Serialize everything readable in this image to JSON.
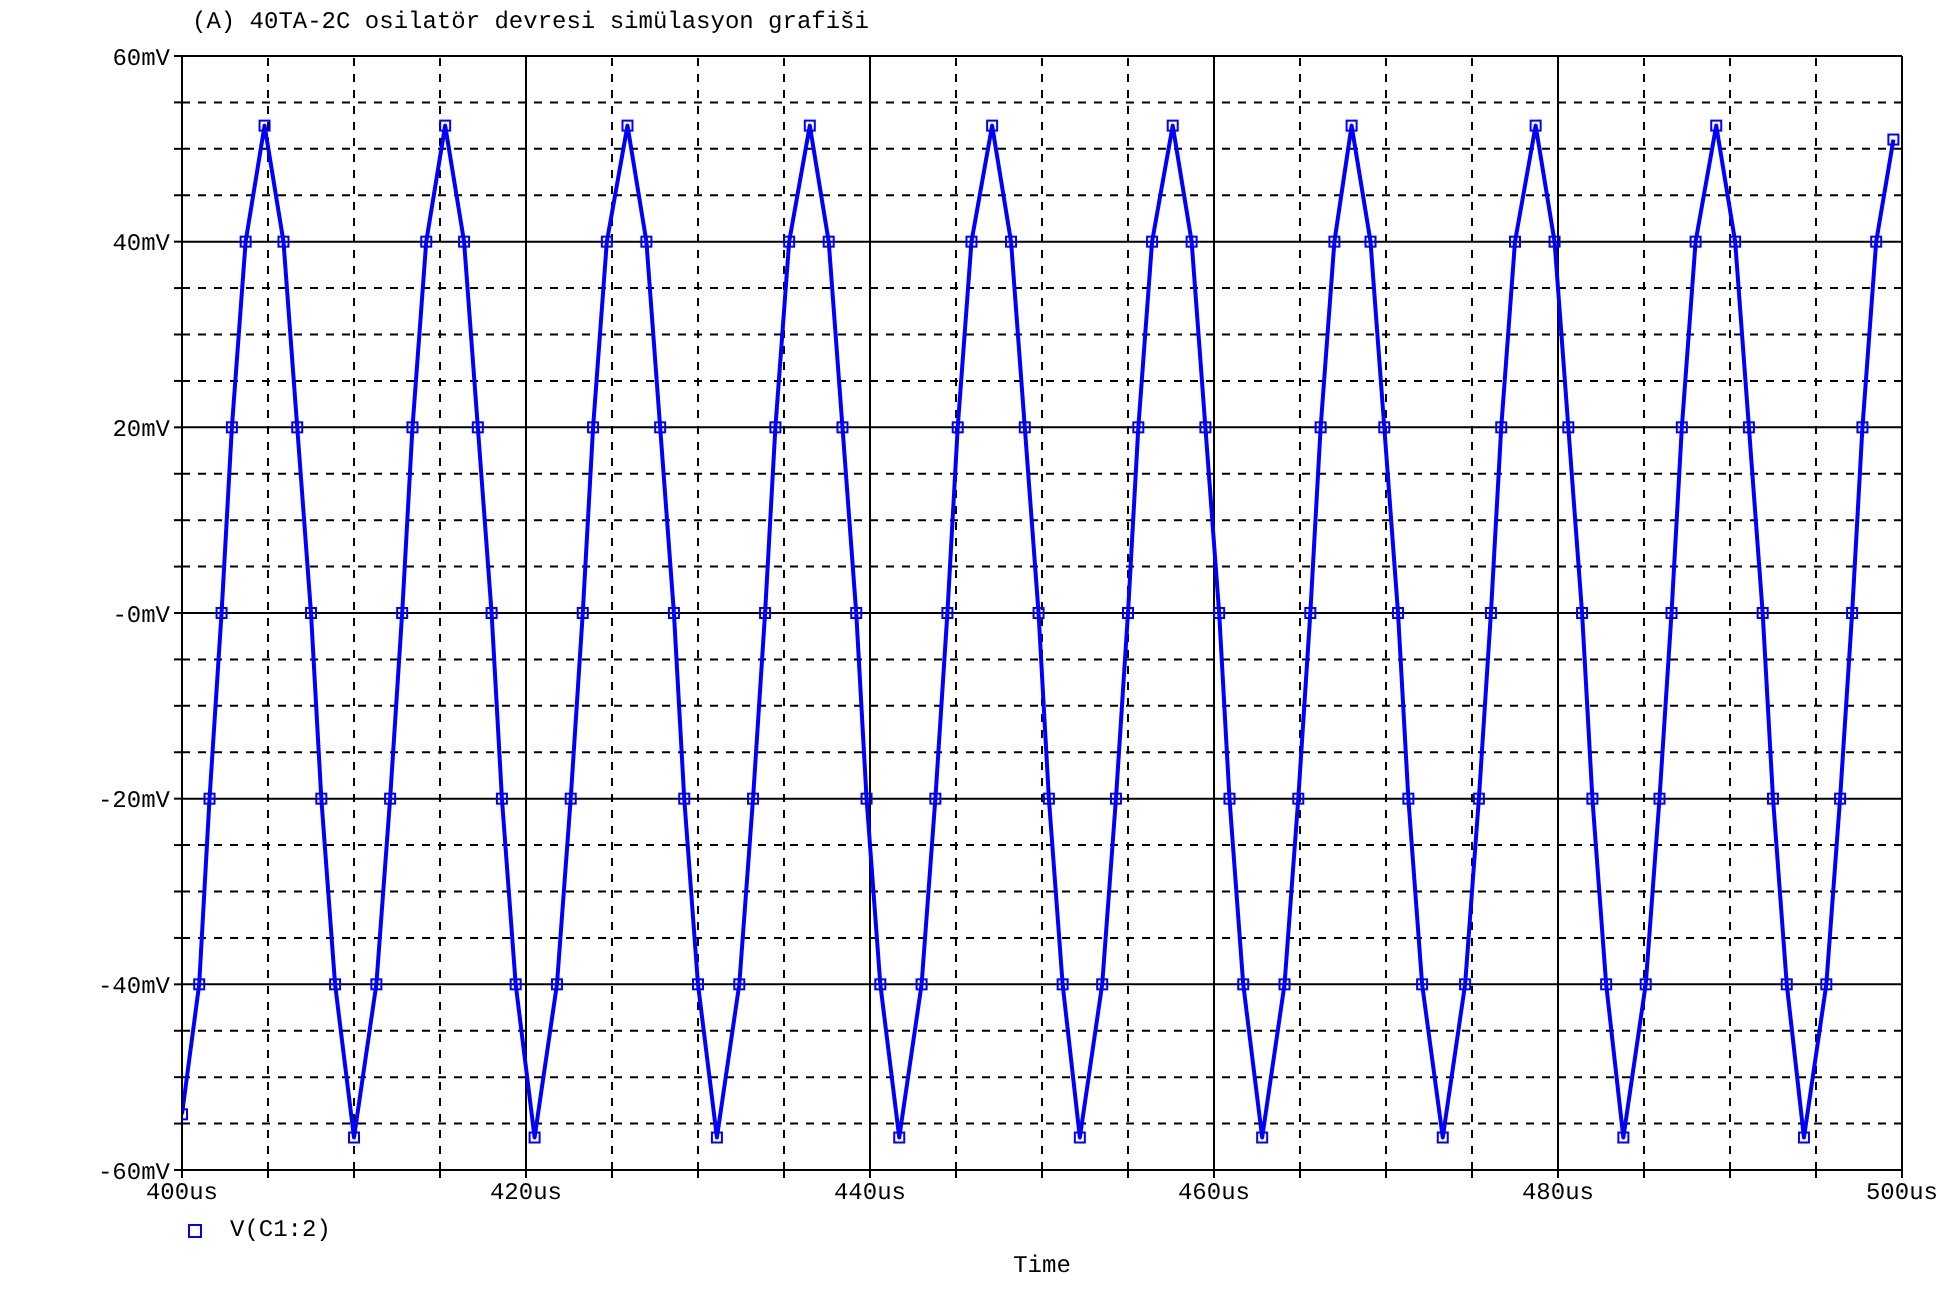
{
  "chart_data": {
    "type": "line",
    "title": "(A) 40TA-2C osilatör devresi simülasyon grafiši",
    "xlabel": "Time",
    "xlim": [
      400,
      500
    ],
    "xticks": [
      {
        "value": 400,
        "label": "400us"
      },
      {
        "value": 405,
        "label": null
      },
      {
        "value": 410,
        "label": null
      },
      {
        "value": 415,
        "label": null
      },
      {
        "value": 420,
        "label": "420us"
      },
      {
        "value": 425,
        "label": null
      },
      {
        "value": 430,
        "label": null
      },
      {
        "value": 435,
        "label": null
      },
      {
        "value": 440,
        "label": "440us"
      },
      {
        "value": 445,
        "label": null
      },
      {
        "value": 450,
        "label": null
      },
      {
        "value": 455,
        "label": null
      },
      {
        "value": 460,
        "label": "460us"
      },
      {
        "value": 465,
        "label": null
      },
      {
        "value": 470,
        "label": null
      },
      {
        "value": 475,
        "label": null
      },
      {
        "value": 480,
        "label": "480us"
      },
      {
        "value": 485,
        "label": null
      },
      {
        "value": 490,
        "label": null
      },
      {
        "value": 495,
        "label": null
      },
      {
        "value": 500,
        "label": "500us"
      }
    ],
    "ylim": [
      -60,
      60
    ],
    "yticks": [
      {
        "value": -60,
        "label": "-60mV"
      },
      {
        "value": -55,
        "label": null
      },
      {
        "value": -50,
        "label": null
      },
      {
        "value": -45,
        "label": null
      },
      {
        "value": -40,
        "label": "-40mV"
      },
      {
        "value": -35,
        "label": null
      },
      {
        "value": -30,
        "label": null
      },
      {
        "value": -25,
        "label": null
      },
      {
        "value": -20,
        "label": "-20mV"
      },
      {
        "value": -15,
        "label": null
      },
      {
        "value": -10,
        "label": null
      },
      {
        "value": -5,
        "label": null
      },
      {
        "value": 0,
        "label": "-0mV"
      },
      {
        "value": 5,
        "label": null
      },
      {
        "value": 10,
        "label": null
      },
      {
        "value": 15,
        "label": null
      },
      {
        "value": 20,
        "label": "20mV"
      },
      {
        "value": 25,
        "label": null
      },
      {
        "value": 30,
        "label": null
      },
      {
        "value": 35,
        "label": null
      },
      {
        "value": 40,
        "label": "40mV"
      },
      {
        "value": 45,
        "label": null
      },
      {
        "value": 50,
        "label": null
      },
      {
        "value": 55,
        "label": null
      },
      {
        "value": 60,
        "label": "60mV"
      }
    ],
    "grid": true,
    "legend": "bottom left",
    "marker": "square",
    "line_style": "solid",
    "series": [
      {
        "name": "V(C1:2)",
        "color": "#0000ff",
        "x": [
          400,
          401.0,
          401.6,
          402.3,
          402.9,
          403.7,
          404.8,
          405.9,
          406.7,
          407.5,
          408.1,
          408.9,
          410.0,
          411.3,
          412.1,
          412.8,
          413.4,
          414.2,
          415.3,
          416.4,
          417.2,
          418.0,
          418.6,
          419.4,
          420.5,
          421.8,
          422.6,
          423.3,
          423.9,
          424.7,
          425.9,
          427.0,
          427.8,
          428.6,
          429.2,
          430.0,
          431.1,
          432.4,
          433.2,
          433.9,
          434.5,
          435.3,
          436.5,
          437.6,
          438.4,
          439.2,
          439.8,
          440.6,
          441.7,
          443.0,
          443.8,
          444.5,
          445.1,
          445.9,
          447.1,
          448.2,
          449.0,
          449.8,
          450.4,
          451.2,
          452.2,
          453.5,
          454.3,
          455.0,
          455.6,
          456.4,
          457.6,
          458.7,
          459.5,
          460.3,
          460.9,
          461.7,
          462.8,
          464.1,
          464.9,
          465.6,
          466.2,
          467.0,
          468.0,
          469.1,
          469.9,
          470.7,
          471.3,
          472.1,
          473.3,
          474.6,
          475.4,
          476.1,
          476.7,
          477.5,
          478.7,
          479.8,
          480.6,
          481.4,
          482.0,
          482.8,
          483.8,
          485.1,
          485.9,
          486.6,
          487.2,
          488.0,
          489.2,
          490.3,
          491.1,
          491.9,
          492.5,
          493.3,
          494.3,
          495.6,
          496.4,
          497.1,
          497.7,
          498.5,
          499.5
        ],
        "values": [
          -54,
          -40,
          -20,
          0,
          20,
          40,
          52.5,
          40,
          20,
          0,
          -20,
          -40,
          -56.5,
          -40,
          -20,
          0,
          20,
          40,
          52.5,
          40,
          20,
          0,
          -20,
          -40,
          -56.5,
          -40,
          -20,
          0,
          20,
          40,
          52.5,
          40,
          20,
          0,
          -20,
          -40,
          -56.5,
          -40,
          -20,
          0,
          20,
          40,
          52.5,
          40,
          20,
          0,
          -20,
          -40,
          -56.5,
          -40,
          -20,
          0,
          20,
          40,
          52.5,
          40,
          20,
          0,
          -20,
          -40,
          -56.5,
          -40,
          -20,
          0,
          20,
          40,
          52.5,
          40,
          20,
          0,
          -20,
          -40,
          -56.5,
          -40,
          -20,
          0,
          20,
          40,
          52.5,
          40,
          20,
          0,
          -20,
          -40,
          -56.5,
          -40,
          -20,
          0,
          20,
          40,
          52.5,
          40,
          20,
          0,
          -20,
          -40,
          -56.5,
          -40,
          -20,
          0,
          20,
          40,
          52.5,
          40,
          20,
          0,
          -20,
          -40,
          -56.5,
          -40,
          -20,
          0,
          20,
          40,
          51
        ]
      }
    ]
  }
}
